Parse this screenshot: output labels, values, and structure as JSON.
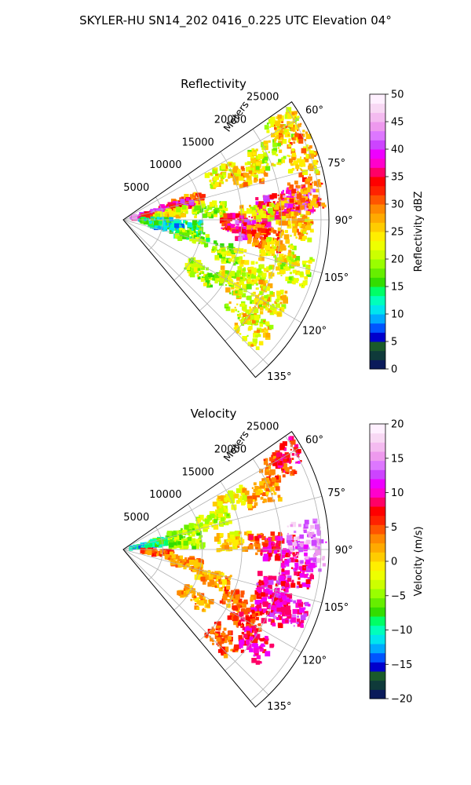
{
  "figure": {
    "title": "SKYLER-HU  SN14_202  0416_0.225 UTC Elevation 04°"
  },
  "chart_data": [
    {
      "type": "heatmap",
      "projection": "polar-sector",
      "title": "Reflectivity",
      "radial_label": "Meters",
      "radial_ticks": [
        5000,
        10000,
        15000,
        20000,
        25000
      ],
      "radial_tick_labels": [
        "5000",
        "10000",
        "15000",
        "20000",
        "25000"
      ],
      "rlim": [
        0,
        26000
      ],
      "azimuth_range_deg": [
        55,
        140
      ],
      "azimuth_ticks": [
        60,
        75,
        90,
        105,
        120,
        135
      ],
      "azimuth_tick_labels": [
        "60°",
        "75°",
        "90°",
        "105°",
        "120°",
        "135°"
      ],
      "grid": true,
      "colorbar": {
        "label": "Reflectivity dBZ",
        "vmin": 0,
        "vmax": 50,
        "ticks": [
          0,
          5,
          10,
          15,
          20,
          25,
          30,
          35,
          40,
          45,
          50
        ],
        "tick_labels": [
          "0",
          "5",
          "10",
          "15",
          "20",
          "25",
          "30",
          "35",
          "40",
          "45",
          "50"
        ],
        "colors": [
          "#0a1a5a",
          "#0f3a3a",
          "#1a5a2a",
          "#0000cc",
          "#0055ff",
          "#00aaff",
          "#00e5ee",
          "#00ffbb",
          "#00ff66",
          "#33dd00",
          "#66ee00",
          "#99ff00",
          "#ccff00",
          "#eeff00",
          "#ffee00",
          "#ffcc00",
          "#ffaa00",
          "#ff8800",
          "#ff5500",
          "#ff2200",
          "#ff0000",
          "#ff0066",
          "#ff00cc",
          "#ee00ff",
          "#cc44ff",
          "#dd77ff",
          "#ee99ee",
          "#f4bbf0",
          "#f8d8f4",
          "#fff0ff"
        ]
      },
      "echo_cells": [
        {
          "az": 60,
          "r": 23500,
          "dbz": 22
        },
        {
          "az": 62,
          "r": 24500,
          "dbz": 28
        },
        {
          "az": 66,
          "r": 14000,
          "dbz": 24
        },
        {
          "az": 70,
          "r": 17000,
          "dbz": 26
        },
        {
          "az": 66,
          "r": 20000,
          "dbz": 22
        },
        {
          "az": 72,
          "r": 24000,
          "dbz": 26
        },
        {
          "az": 74,
          "r": 8500,
          "dbz": 28
        },
        {
          "az": 76,
          "r": 7000,
          "dbz": 36
        },
        {
          "az": 78,
          "r": 3000,
          "dbz": 40
        },
        {
          "az": 80,
          "r": 4000,
          "dbz": 36
        },
        {
          "az": 82,
          "r": 6000,
          "dbz": 24
        },
        {
          "az": 84,
          "r": 11000,
          "dbz": 20
        },
        {
          "az": 85,
          "r": 19000,
          "dbz": 36
        },
        {
          "az": 87,
          "r": 21500,
          "dbz": 28
        },
        {
          "az": 84,
          "r": 22500,
          "dbz": 40
        },
        {
          "az": 82,
          "r": 23500,
          "dbz": 30
        },
        {
          "az": 92,
          "r": 22000,
          "dbz": 26
        },
        {
          "az": 88,
          "r": 17000,
          "dbz": 24
        },
        {
          "az": 92,
          "r": 14500,
          "dbz": 34
        },
        {
          "az": 95,
          "r": 16500,
          "dbz": 38
        },
        {
          "az": 97,
          "r": 18000,
          "dbz": 30
        },
        {
          "az": 96,
          "r": 8000,
          "dbz": 14
        },
        {
          "az": 100,
          "r": 5500,
          "dbz": 12
        },
        {
          "az": 92,
          "r": 4000,
          "dbz": 14
        },
        {
          "az": 104,
          "r": 9000,
          "dbz": 18
        },
        {
          "az": 108,
          "r": 14000,
          "dbz": 20
        },
        {
          "az": 112,
          "r": 18000,
          "dbz": 22
        },
        {
          "az": 118,
          "r": 21000,
          "dbz": 24
        },
        {
          "az": 120,
          "r": 16000,
          "dbz": 22
        },
        {
          "az": 126,
          "r": 19000,
          "dbz": 22
        },
        {
          "az": 130,
          "r": 21500,
          "dbz": 24
        },
        {
          "az": 124,
          "r": 12000,
          "dbz": 20
        },
        {
          "az": 102,
          "r": 20000,
          "dbz": 24
        },
        {
          "az": 106,
          "r": 22500,
          "dbz": 22
        }
      ]
    },
    {
      "type": "heatmap",
      "projection": "polar-sector",
      "title": "Velocity",
      "radial_label": "Meters",
      "radial_ticks": [
        5000,
        10000,
        15000,
        20000,
        25000
      ],
      "radial_tick_labels": [
        "5000",
        "10000",
        "15000",
        "20000",
        "25000"
      ],
      "rlim": [
        0,
        26000
      ],
      "azimuth_range_deg": [
        55,
        140
      ],
      "azimuth_ticks": [
        60,
        75,
        90,
        105,
        120,
        135
      ],
      "azimuth_tick_labels": [
        "60°",
        "75°",
        "90°",
        "105°",
        "120°",
        "135°"
      ],
      "grid": true,
      "colorbar": {
        "label": "Velocity (m/s)",
        "vmin": -20,
        "vmax": 20,
        "ticks": [
          -20,
          -15,
          -10,
          -5,
          0,
          5,
          10,
          15,
          20
        ],
        "tick_labels": [
          "−20",
          "−15",
          "−10",
          "−5",
          "0",
          "5",
          "10",
          "15",
          "20"
        ],
        "colors": [
          "#0a1a5a",
          "#0f3a3a",
          "#1a5a2a",
          "#0000cc",
          "#0055ff",
          "#00aaff",
          "#00e5ee",
          "#00ffbb",
          "#00ff66",
          "#33dd00",
          "#66ee00",
          "#99ff00",
          "#ccff00",
          "#eeff00",
          "#ffee00",
          "#ffcc00",
          "#ffaa00",
          "#ff8800",
          "#ff5500",
          "#ff2200",
          "#ff0000",
          "#ff0066",
          "#ff00cc",
          "#ee00ff",
          "#cc44ff",
          "#dd77ff",
          "#ee99ee",
          "#f4bbf0",
          "#f8d8f4",
          "#fff0ff"
        ]
      },
      "echo_cells": [
        {
          "az": 80,
          "r": 3000,
          "vel": -11
        },
        {
          "az": 78,
          "r": 5000,
          "vel": -8
        },
        {
          "az": 75,
          "r": 8000,
          "vel": -5
        },
        {
          "az": 72,
          "r": 12000,
          "vel": -3
        },
        {
          "az": 66,
          "r": 15000,
          "vel": -1
        },
        {
          "az": 68,
          "r": 19000,
          "vel": 2
        },
        {
          "az": 62,
          "r": 22000,
          "vel": 5
        },
        {
          "az": 60,
          "r": 24500,
          "vel": 8
        },
        {
          "az": 84,
          "r": 8000,
          "vel": -4
        },
        {
          "az": 86,
          "r": 14000,
          "vel": 0
        },
        {
          "az": 88,
          "r": 18000,
          "vel": 6
        },
        {
          "az": 90,
          "r": 20000,
          "vel": 9
        },
        {
          "az": 86,
          "r": 23000,
          "vel": 15
        },
        {
          "az": 92,
          "r": 24000,
          "vel": 14
        },
        {
          "az": 98,
          "r": 22000,
          "vel": 10
        },
        {
          "az": 96,
          "r": 4500,
          "vel": 4
        },
        {
          "az": 102,
          "r": 8000,
          "vel": 3
        },
        {
          "az": 108,
          "r": 12000,
          "vel": 2
        },
        {
          "az": 114,
          "r": 16000,
          "vel": 4
        },
        {
          "az": 112,
          "r": 20000,
          "vel": 9
        },
        {
          "az": 120,
          "r": 18000,
          "vel": 6
        },
        {
          "az": 126,
          "r": 20500,
          "vel": 9
        },
        {
          "az": 132,
          "r": 17000,
          "vel": 5
        },
        {
          "az": 124,
          "r": 11000,
          "vel": 2
        },
        {
          "az": 104,
          "r": 19500,
          "vel": 10
        },
        {
          "az": 110,
          "r": 22500,
          "vel": 11
        }
      ]
    }
  ]
}
